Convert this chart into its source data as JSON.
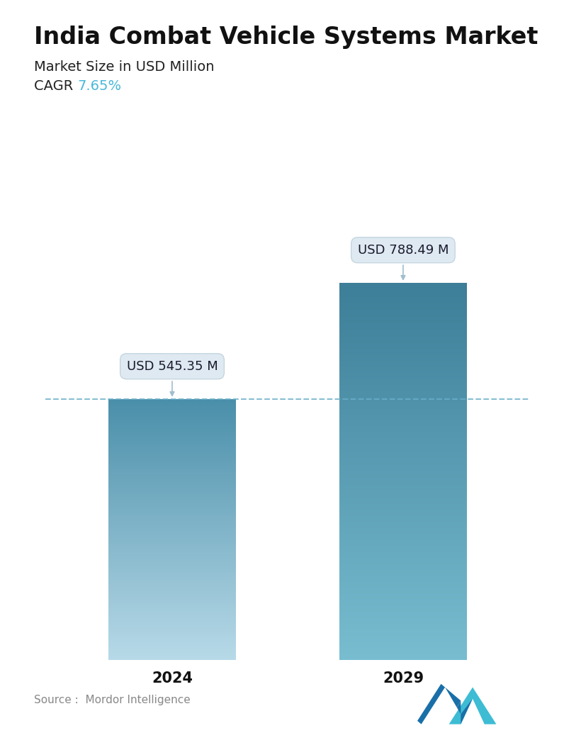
{
  "title": "India Combat Vehicle Systems Market",
  "subtitle": "Market Size in USD Million",
  "cagr_label": "CAGR ",
  "cagr_value": "7.65%",
  "cagr_color": "#4ab8d8",
  "categories": [
    "2024",
    "2029"
  ],
  "values": [
    545.35,
    788.49
  ],
  "annotations": [
    "USD 545.35 M",
    "USD 788.49 M"
  ],
  "bar_color_top_2024": "#4a8faa",
  "bar_color_bottom_2024": "#b8dae8",
  "bar_color_top_2029": "#3d7e98",
  "bar_color_bottom_2029": "#78bdd0",
  "dashed_line_y": 545.35,
  "dashed_line_color": "#6aaec8",
  "source_text": "Source :  Mordor Intelligence",
  "background_color": "#ffffff",
  "ylim": [
    0,
    920
  ],
  "bar_width": 0.55,
  "bar_gap": 1.0,
  "title_fontsize": 24,
  "subtitle_fontsize": 14,
  "cagr_fontsize": 14,
  "xlabel_fontsize": 15,
  "annotation_fontsize": 13,
  "source_fontsize": 11,
  "logo_color_left": "#1a6fa8",
  "logo_color_right": "#3dbcd4"
}
